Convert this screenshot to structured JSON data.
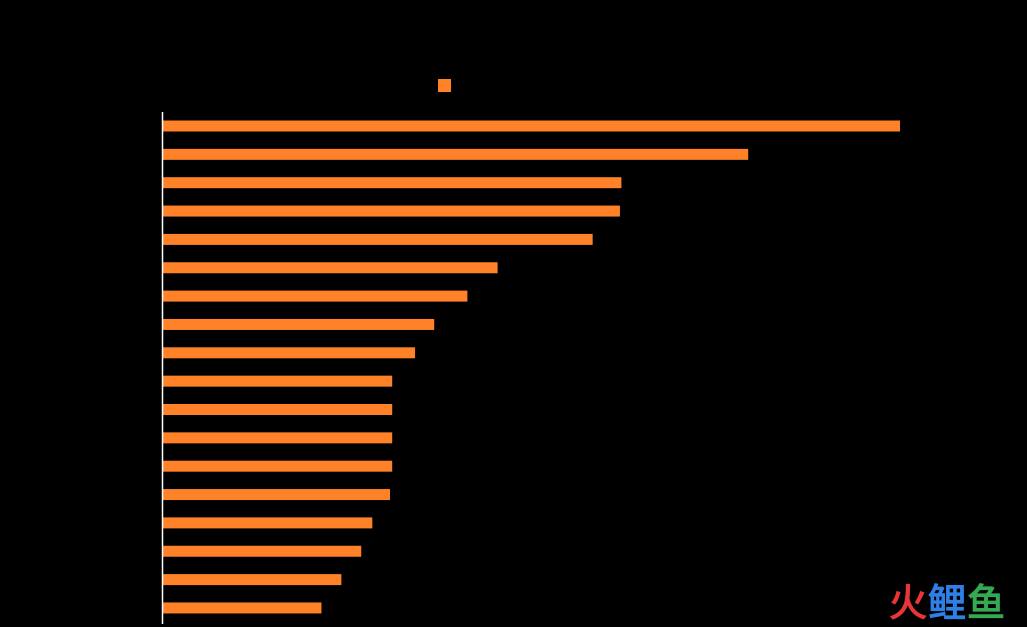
{
  "chart_data": {
    "type": "bar",
    "orientation": "horizontal",
    "title": "",
    "xlabel": "",
    "ylabel": "",
    "categories": [
      "",
      "",
      "",
      "",
      "",
      "",
      "",
      "",
      "",
      "",
      "",
      "",
      "",
      "",
      "",
      "",
      "",
      ""
    ],
    "series": [
      {
        "values": [
          100,
          79.4,
          62.2,
          62.0,
          58.3,
          45.4,
          41.3,
          36.8,
          34.2,
          31.1,
          31.1,
          31.1,
          31.1,
          30.8,
          28.4,
          26.9,
          24.2,
          21.5
        ]
      }
    ],
    "xlim": [
      0,
      100
    ],
    "grid": false,
    "legend": "top-center",
    "colors": {
      "bar": "#FF8128",
      "axis": "#FFFFFF",
      "background": "#000000"
    }
  },
  "watermark": {
    "text": "火鲤鱼",
    "chars": [
      {
        "char": "火",
        "color": "#E8353A"
      },
      {
        "char": "鲤",
        "color": "#2F7FE8"
      },
      {
        "char": "鱼",
        "color": "#35A853"
      }
    ]
  }
}
